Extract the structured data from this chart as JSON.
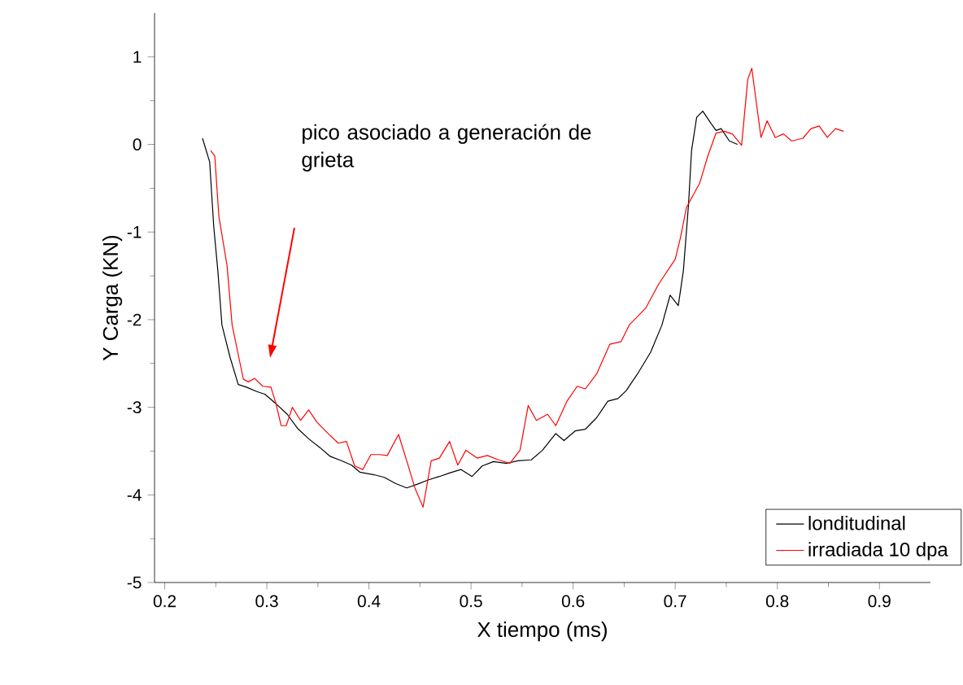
{
  "chart_data": {
    "type": "line",
    "xlabel": "X tiempo (ms)",
    "ylabel": "Y Carga (KN)",
    "xlim": [
      0.19,
      0.95
    ],
    "ylim": [
      -5,
      1.5
    ],
    "xticks": [
      0.2,
      0.3,
      0.4,
      0.5,
      0.6,
      0.7,
      0.8,
      0.9
    ],
    "yticks": [
      -5,
      -4,
      -3,
      -2,
      -1,
      0,
      1
    ],
    "legend": "bottom right",
    "grid": false,
    "marker": "none",
    "line_style": "solid",
    "annotations": [
      "pico asociado a generación de grieta"
    ],
    "series": [
      {
        "name": "londitudinal",
        "color": "#000000",
        "x": [
          0.237,
          0.244,
          0.248,
          0.252,
          0.256,
          0.264,
          0.272,
          0.28,
          0.29,
          0.298,
          0.309,
          0.32,
          0.33,
          0.341,
          0.352,
          0.362,
          0.373,
          0.383,
          0.391,
          0.405,
          0.415,
          0.426,
          0.437,
          0.447,
          0.458,
          0.469,
          0.479,
          0.49,
          0.501,
          0.511,
          0.522,
          0.535,
          0.546,
          0.559,
          0.57,
          0.583,
          0.591,
          0.602,
          0.612,
          0.623,
          0.634,
          0.644,
          0.652,
          0.663,
          0.676,
          0.687,
          0.695,
          0.703,
          0.708,
          0.713,
          0.716,
          0.721,
          0.727,
          0.735,
          0.74,
          0.745,
          0.753,
          0.761
        ],
        "values": [
          0.07,
          -0.2,
          -0.94,
          -1.44,
          -2.06,
          -2.43,
          -2.74,
          -2.77,
          -2.82,
          -2.85,
          -2.96,
          -3.08,
          -3.24,
          -3.36,
          -3.46,
          -3.56,
          -3.61,
          -3.66,
          -3.74,
          -3.77,
          -3.8,
          -3.87,
          -3.92,
          -3.88,
          -3.83,
          -3.79,
          -3.75,
          -3.71,
          -3.79,
          -3.67,
          -3.62,
          -3.64,
          -3.61,
          -3.6,
          -3.49,
          -3.3,
          -3.38,
          -3.27,
          -3.25,
          -3.12,
          -2.93,
          -2.9,
          -2.81,
          -2.62,
          -2.37,
          -2.06,
          -1.72,
          -1.84,
          -1.44,
          -0.69,
          -0.07,
          0.31,
          0.38,
          0.24,
          0.16,
          0.18,
          0.04,
          0.0
        ]
      },
      {
        "name": "irradiada 10 dpa",
        "color": "#ff0000",
        "x": [
          0.245,
          0.249,
          0.253,
          0.261,
          0.266,
          0.272,
          0.277,
          0.282,
          0.288,
          0.296,
          0.304,
          0.309,
          0.314,
          0.319,
          0.325,
          0.333,
          0.341,
          0.349,
          0.36,
          0.37,
          0.378,
          0.386,
          0.394,
          0.402,
          0.41,
          0.418,
          0.429,
          0.437,
          0.445,
          0.453,
          0.461,
          0.469,
          0.479,
          0.487,
          0.495,
          0.506,
          0.516,
          0.527,
          0.538,
          0.548,
          0.556,
          0.564,
          0.575,
          0.583,
          0.594,
          0.604,
          0.612,
          0.623,
          0.636,
          0.647,
          0.655,
          0.671,
          0.684,
          0.7,
          0.705,
          0.711,
          0.724,
          0.732,
          0.74,
          0.748,
          0.756,
          0.765,
          0.771,
          0.775,
          0.78,
          0.784,
          0.79,
          0.798,
          0.806,
          0.814,
          0.825,
          0.833,
          0.841,
          0.849,
          0.857,
          0.865
        ],
        "values": [
          -0.07,
          -0.13,
          -0.82,
          -1.38,
          -2.06,
          -2.4,
          -2.68,
          -2.71,
          -2.67,
          -2.76,
          -2.77,
          -2.96,
          -3.21,
          -3.21,
          -3.0,
          -3.15,
          -3.03,
          -3.17,
          -3.3,
          -3.41,
          -3.39,
          -3.67,
          -3.71,
          -3.54,
          -3.54,
          -3.55,
          -3.31,
          -3.61,
          -3.92,
          -4.14,
          -3.61,
          -3.58,
          -3.39,
          -3.66,
          -3.49,
          -3.58,
          -3.55,
          -3.6,
          -3.64,
          -3.49,
          -2.98,
          -3.15,
          -3.08,
          -3.21,
          -2.93,
          -2.76,
          -2.79,
          -2.62,
          -2.28,
          -2.25,
          -2.06,
          -1.87,
          -1.59,
          -1.31,
          -1.07,
          -0.72,
          -0.44,
          -0.13,
          0.13,
          0.15,
          0.12,
          -0.01,
          0.74,
          0.87,
          0.43,
          0.08,
          0.27,
          0.08,
          0.12,
          0.04,
          0.07,
          0.18,
          0.21,
          0.08,
          0.18,
          0.15
        ]
      }
    ]
  }
}
